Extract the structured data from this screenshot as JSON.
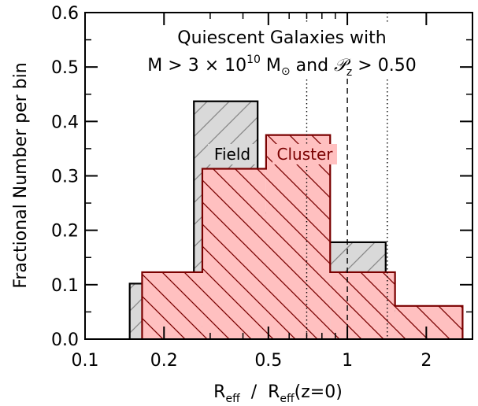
{
  "chart_data": {
    "type": "histogram",
    "xscale": "log",
    "xlim": [
      0.1,
      3.0
    ],
    "ylim": [
      0.0,
      0.6
    ],
    "xticks": [
      {
        "value": 0.1,
        "label": "0.1"
      },
      {
        "value": 0.2,
        "label": "0.2"
      },
      {
        "value": 0.5,
        "label": "0.5"
      },
      {
        "value": 1,
        "label": "1"
      },
      {
        "value": 2,
        "label": "2"
      }
    ],
    "yticks": [
      {
        "value": 0.0,
        "label": "0.0"
      },
      {
        "value": 0.1,
        "label": "0.1"
      },
      {
        "value": 0.2,
        "label": "0.2"
      },
      {
        "value": 0.3,
        "label": "0.3"
      },
      {
        "value": 0.4,
        "label": "0.4"
      },
      {
        "value": 0.5,
        "label": "0.5"
      },
      {
        "value": 0.6,
        "label": "0.6"
      }
    ],
    "xlabel": {
      "main": "R",
      "sub": "eff",
      "rest": "  /  R",
      "sub2": "eff",
      "tail": "(z=0)"
    },
    "ylabel": "Fractional Number per bin",
    "title_line1": "Quiescent Galaxies with",
    "title_line2": {
      "m_part": "M > 3 × 10",
      "exp": "10",
      "msun": " M",
      "sun_symbol": "⊙",
      "and_part": " and ",
      "pz": "𝒫",
      "pz_sub": "z",
      "tail": " > 0.50"
    },
    "series": [
      {
        "name": "Field",
        "edges": [
          0.148,
          0.26,
          0.455,
          0.8,
          1.4,
          2.45
        ],
        "values": [
          0.102,
          0.437,
          0.232,
          0.178,
          0.052
        ],
        "fill": "#d9d9d9",
        "line": "#000000",
        "hatch": "#888888"
      },
      {
        "name": "Cluster",
        "edges": [
          0.165,
          0.28,
          0.49,
          0.86,
          1.52,
          2.75
        ],
        "values": [
          0.123,
          0.313,
          0.375,
          0.123,
          0.061
        ],
        "fill": "#ffc0c0",
        "line": "#7a0000",
        "hatch": "#7a0000"
      }
    ],
    "vlines": [
      {
        "x": 0.7,
        "style": "dotted"
      },
      {
        "x": 1.0,
        "style": "dashed"
      },
      {
        "x": 1.42,
        "style": "dotted"
      }
    ],
    "legend_labels": {
      "field": "Field",
      "cluster": "Cluster"
    }
  }
}
